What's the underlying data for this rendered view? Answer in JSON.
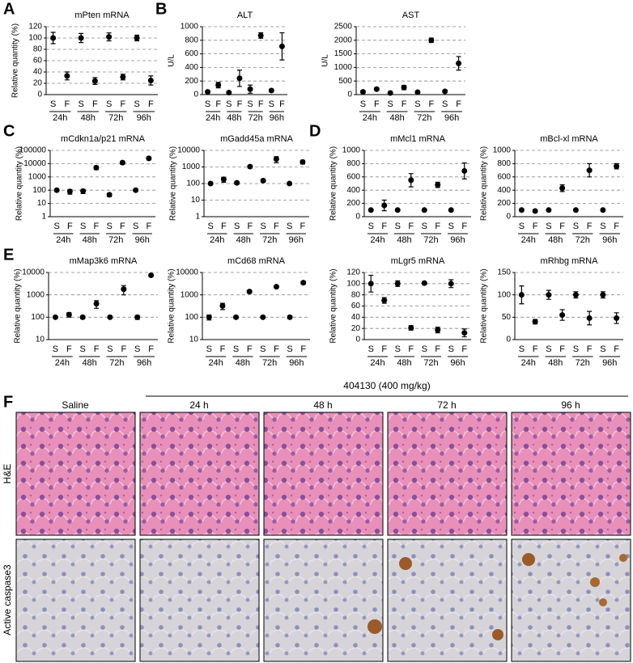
{
  "panel_labels": [
    "A",
    "B",
    "C",
    "D",
    "E",
    "F"
  ],
  "chart_data": [
    {
      "type": "errorbar",
      "title": "mPten mRNA",
      "ylabel": "Relative quantity (%)",
      "categories": [
        "S",
        "F",
        "S",
        "F",
        "S",
        "F",
        "S",
        "F"
      ],
      "groups": [
        "24h",
        "48h",
        "72h",
        "96h"
      ],
      "values": [
        100,
        33,
        100,
        24,
        102,
        31,
        100,
        25
      ],
      "errors": [
        10,
        7,
        8,
        6,
        7,
        5,
        5,
        8
      ],
      "ylim": [
        0,
        120
      ],
      "yticks": [
        0,
        20,
        40,
        60,
        80,
        100,
        120
      ],
      "log_scale": false,
      "grid": true,
      "color": "#000000"
    },
    {
      "type": "errorbar",
      "title": "ALT",
      "ylabel": "U/L",
      "categories": [
        "S",
        "F",
        "S",
        "F",
        "S",
        "F",
        "S",
        "F"
      ],
      "groups": [
        "24h",
        "48h",
        "72h",
        "96h"
      ],
      "values": [
        40,
        140,
        30,
        240,
        80,
        870,
        60,
        710
      ],
      "errors": [
        15,
        40,
        10,
        120,
        60,
        40,
        20,
        200
      ],
      "ylim": [
        0,
        1000
      ],
      "yticks": [
        0,
        200,
        400,
        600,
        800,
        1000
      ],
      "log_scale": false,
      "grid": true,
      "color": "#000000"
    },
    {
      "type": "errorbar",
      "title": "AST",
      "ylabel": "U/L",
      "categories": [
        "S",
        "F",
        "S",
        "F",
        "S",
        "F",
        "S",
        "F"
      ],
      "groups": [
        "24h",
        "48h",
        "72h",
        "96h"
      ],
      "values": [
        100,
        200,
        60,
        260,
        90,
        2000,
        120,
        1150
      ],
      "errors": [
        30,
        40,
        20,
        80,
        40,
        80,
        40,
        250
      ],
      "ylim": [
        0,
        2500
      ],
      "yticks": [
        0,
        500,
        1000,
        1500,
        2000,
        2500
      ],
      "log_scale": false,
      "grid": true,
      "color": "#000000"
    },
    {
      "type": "errorbar",
      "title": "mCdkn1a/p21 mRNA",
      "ylabel": "Relative quantity (%)",
      "categories": [
        "S",
        "F",
        "S",
        "F",
        "S",
        "F",
        "S",
        "F"
      ],
      "groups": [
        "24h",
        "48h",
        "72h",
        "96h"
      ],
      "values": [
        100,
        80,
        85,
        5000,
        45,
        12000,
        100,
        25000
      ],
      "errors": [
        20,
        30,
        30,
        1500,
        12,
        3000,
        20,
        6000
      ],
      "ylim": [
        1,
        100000
      ],
      "yticks": [
        1,
        10,
        100,
        1000,
        10000,
        100000
      ],
      "log_scale": true,
      "grid": true,
      "color": "#000000"
    },
    {
      "type": "errorbar",
      "title": "mGadd45a mRNA",
      "ylabel": "Relative quantity (%)",
      "categories": [
        "S",
        "F",
        "S",
        "F",
        "S",
        "F",
        "S",
        "F"
      ],
      "groups": [
        "24h",
        "48h",
        "72h",
        "96h"
      ],
      "values": [
        100,
        180,
        110,
        1050,
        150,
        3000,
        100,
        2000
      ],
      "errors": [
        15,
        60,
        20,
        200,
        30,
        1200,
        15,
        500
      ],
      "ylim": [
        1,
        10000
      ],
      "yticks": [
        1,
        10,
        100,
        1000,
        10000
      ],
      "log_scale": true,
      "grid": true,
      "color": "#000000"
    },
    {
      "type": "errorbar",
      "title": "mMcl1 mRNA",
      "ylabel": "Relative quantity (%)",
      "categories": [
        "S",
        "F",
        "S",
        "F",
        "S",
        "F",
        "S",
        "F"
      ],
      "groups": [
        "24h",
        "48h",
        "72h",
        "96h"
      ],
      "values": [
        100,
        170,
        100,
        550,
        100,
        480,
        100,
        690
      ],
      "errors": [
        15,
        80,
        15,
        100,
        10,
        40,
        10,
        120
      ],
      "ylim": [
        0,
        1000
      ],
      "yticks": [
        0,
        200,
        400,
        600,
        800,
        1000
      ],
      "log_scale": false,
      "grid": true,
      "color": "#000000"
    },
    {
      "type": "errorbar",
      "title": "mBcl-xl mRNA",
      "ylabel": "Relative quantity (%)",
      "categories": [
        "S",
        "F",
        "S",
        "F",
        "S",
        "F",
        "S",
        "F"
      ],
      "groups": [
        "24h",
        "48h",
        "72h",
        "96h"
      ],
      "values": [
        100,
        85,
        100,
        430,
        100,
        700,
        100,
        760
      ],
      "errors": [
        20,
        15,
        15,
        50,
        10,
        100,
        10,
        40
      ],
      "ylim": [
        0,
        1000
      ],
      "yticks": [
        0,
        200,
        400,
        600,
        800,
        1000
      ],
      "log_scale": false,
      "grid": true,
      "color": "#000000"
    },
    {
      "type": "errorbar",
      "title": "mMap3k6 mRNA",
      "ylabel": "Relative quantity (%)",
      "categories": [
        "S",
        "F",
        "S",
        "F",
        "S",
        "F",
        "S",
        "F"
      ],
      "groups": [
        "24h",
        "48h",
        "72h",
        "96h"
      ],
      "values": [
        100,
        130,
        100,
        400,
        100,
        1800,
        100,
        7500
      ],
      "errors": [
        10,
        30,
        15,
        150,
        10,
        800,
        20,
        1000
      ],
      "ylim": [
        10,
        10000
      ],
      "yticks": [
        10,
        100,
        1000,
        10000
      ],
      "log_scale": true,
      "grid": true,
      "color": "#000000"
    },
    {
      "type": "errorbar",
      "title": "mCd68 mRNA",
      "ylabel": "Relative quantity (%)",
      "categories": [
        "S",
        "F",
        "S",
        "F",
        "S",
        "F",
        "S",
        "F"
      ],
      "groups": [
        "24h",
        "48h",
        "72h",
        "96h"
      ],
      "values": [
        100,
        320,
        100,
        1400,
        100,
        2300,
        100,
        3500
      ],
      "errors": [
        25,
        100,
        15,
        200,
        10,
        200,
        15,
        500
      ],
      "ylim": [
        10,
        10000
      ],
      "yticks": [
        10,
        100,
        1000,
        10000
      ],
      "log_scale": true,
      "grid": true,
      "color": "#000000"
    },
    {
      "type": "errorbar",
      "title": "mLgr5 mRNA",
      "ylabel": "Relative quantity (%)",
      "categories": [
        "S",
        "F",
        "S",
        "F",
        "S",
        "F",
        "S",
        "F"
      ],
      "groups": [
        "24h",
        "48h",
        "72h",
        "96h"
      ],
      "values": [
        100,
        70,
        100,
        21,
        101,
        17,
        100,
        12
      ],
      "errors": [
        15,
        5,
        5,
        4,
        2,
        5,
        7,
        7
      ],
      "ylim": [
        0,
        120
      ],
      "yticks": [
        0,
        20,
        40,
        60,
        80,
        100,
        120
      ],
      "log_scale": false,
      "grid": true,
      "color": "#000000"
    },
    {
      "type": "errorbar",
      "title": "mRhbg mRNA",
      "ylabel": "Relative quantity (%)",
      "categories": [
        "S",
        "F",
        "S",
        "F",
        "S",
        "F",
        "S",
        "F"
      ],
      "groups": [
        "24h",
        "48h",
        "72h",
        "96h"
      ],
      "values": [
        100,
        40,
        100,
        55,
        100,
        48,
        100,
        48
      ],
      "errors": [
        20,
        5,
        10,
        12,
        7,
        15,
        7,
        12
      ],
      "ylim": [
        0,
        150
      ],
      "yticks": [
        0,
        50,
        100,
        150
      ],
      "log_scale": false,
      "grid": true,
      "color": "#000000"
    }
  ],
  "histology": {
    "treatment": "404130 (400 mg/kg)",
    "columns": [
      "Saline",
      "24 h",
      "48 h",
      "72 h",
      "96 h"
    ],
    "rows": [
      "H&E",
      "Active caspase3"
    ]
  }
}
